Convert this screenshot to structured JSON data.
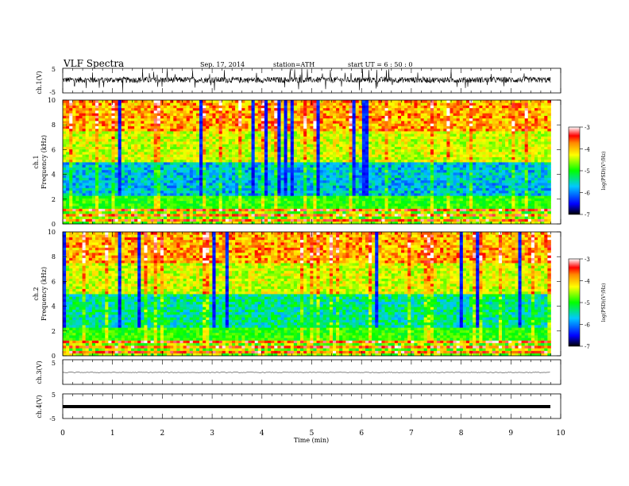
{
  "header": {
    "title": "VLF Spectra",
    "date": "Sep. 17, 2014",
    "station": "station=ATH",
    "start": "start  UT =   6 : 50 : 0"
  },
  "chart_data": [
    {
      "type": "line",
      "ylabel": "ch.1(V)",
      "ylim": [
        -5,
        5
      ],
      "yticks": [
        "5",
        "-5"
      ],
      "series": [
        {
          "level": 0.3,
          "noise_amplitude": 1.2,
          "spikes": true
        }
      ]
    },
    {
      "type": "heatmap",
      "ylabel_line1": "ch.1",
      "ylabel_line2": "Frequency (kHz)",
      "ylim": [
        0,
        10
      ],
      "yticks": [
        "0",
        "2",
        "4",
        "6",
        "8",
        "10"
      ],
      "colorbar": {
        "label": "log(PSD)(V²/Hz)",
        "range": [
          -7,
          -3
        ],
        "ticks": [
          "-3",
          "-4",
          "-5",
          "-6",
          "-7"
        ]
      }
    },
    {
      "type": "heatmap",
      "ylabel_line1": "ch.2",
      "ylabel_line2": "Frequency (kHz)",
      "ylim": [
        0,
        10
      ],
      "yticks": [
        "0",
        "2",
        "4",
        "6",
        "8",
        "10"
      ],
      "colorbar": {
        "label": "log(PSD)(V²/Hz)",
        "range": [
          -7,
          -3
        ],
        "ticks": [
          "-3",
          "-4",
          "-5",
          "-6",
          "-7"
        ]
      }
    },
    {
      "type": "line",
      "ylabel": "ch.3(V)",
      "ylim": [
        -5,
        5
      ],
      "yticks": [
        "5"
      ],
      "series": [
        {
          "level": 0.0,
          "noise_amplitude": 0.05
        }
      ]
    },
    {
      "type": "line",
      "ylabel": "ch.4(V)",
      "ylim": [
        -5,
        5
      ],
      "yticks": [
        "5",
        "-5"
      ],
      "series": [
        {
          "level": 0.0,
          "noise_amplitude": 0.0
        }
      ]
    }
  ],
  "xaxis": {
    "label": "Time  (min)",
    "xlim": [
      0,
      10
    ],
    "ticks": [
      "0",
      "1",
      "2",
      "3",
      "4",
      "5",
      "6",
      "7",
      "8",
      "9",
      "10"
    ],
    "data_end": 9.8
  }
}
